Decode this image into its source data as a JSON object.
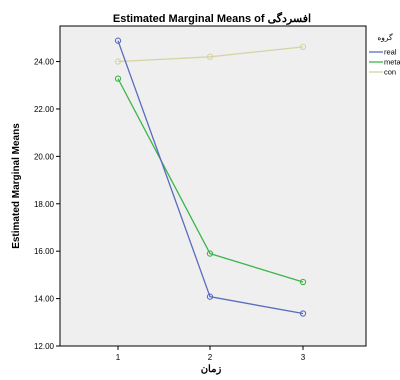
{
  "chart_data": {
    "type": "line",
    "title": "Estimated Marginal Means of افسردگی",
    "xlabel": "زمان",
    "ylabel": "Estimated Marginal Means",
    "categories": [
      "1",
      "2",
      "3"
    ],
    "ylim": [
      12.0,
      25.5
    ],
    "yticks": [
      "12.00",
      "14.00",
      "16.00",
      "18.00",
      "20.00",
      "22.00",
      "24.00"
    ],
    "grid": false,
    "legend": {
      "title": "گروه",
      "placement": "right"
    },
    "series": [
      {
        "name": "real",
        "color": "#5a6bbf",
        "values": [
          24.88,
          14.08,
          13.37
        ]
      },
      {
        "name": "meta",
        "color": "#3cb54a",
        "values": [
          23.28,
          15.9,
          14.7
        ]
      },
      {
        "name": "con",
        "color": "#d6d3a3",
        "values": [
          24.0,
          24.2,
          24.62
        ]
      }
    ]
  },
  "colors": {
    "plot_background": "#efefef",
    "frame": "#000000"
  }
}
